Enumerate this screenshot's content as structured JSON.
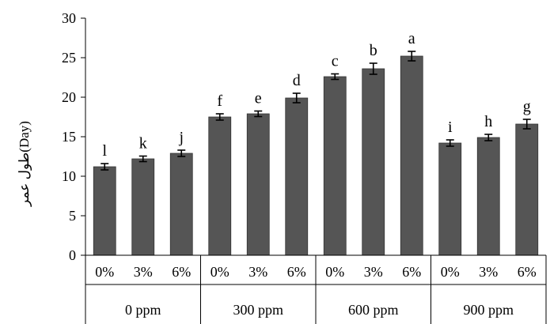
{
  "chart_data": {
    "type": "bar",
    "ylabel": "طول عمر(Day)",
    "ylim": [
      0,
      30
    ],
    "yticks": [
      0,
      5,
      10,
      15,
      20,
      25,
      30
    ],
    "grid": false,
    "legend": "none",
    "bar_color": "#555555",
    "groups": [
      {
        "name": "0 ppm",
        "bars": [
          {
            "category": "0%",
            "value": 11.2,
            "error": 0.4,
            "label": "l"
          },
          {
            "category": "3%",
            "value": 12.2,
            "error": 0.35,
            "label": "k"
          },
          {
            "category": "6%",
            "value": 12.9,
            "error": 0.4,
            "label": "j"
          }
        ]
      },
      {
        "name": "300 ppm",
        "bars": [
          {
            "category": "0%",
            "value": 17.5,
            "error": 0.4,
            "label": "f"
          },
          {
            "category": "3%",
            "value": 17.9,
            "error": 0.35,
            "label": "e"
          },
          {
            "category": "6%",
            "value": 19.9,
            "error": 0.6,
            "label": "d"
          }
        ]
      },
      {
        "name": "600 ppm",
        "bars": [
          {
            "category": "0%",
            "value": 22.6,
            "error": 0.35,
            "label": "c"
          },
          {
            "category": "3%",
            "value": 23.6,
            "error": 0.7,
            "label": "b"
          },
          {
            "category": "6%",
            "value": 25.2,
            "error": 0.6,
            "label": "a"
          }
        ]
      },
      {
        "name": "900 ppm",
        "bars": [
          {
            "category": "0%",
            "value": 14.2,
            "error": 0.4,
            "label": "i"
          },
          {
            "category": "3%",
            "value": 14.9,
            "error": 0.4,
            "label": "h"
          },
          {
            "category": "6%",
            "value": 16.6,
            "error": 0.6,
            "label": "g"
          }
        ]
      }
    ]
  }
}
